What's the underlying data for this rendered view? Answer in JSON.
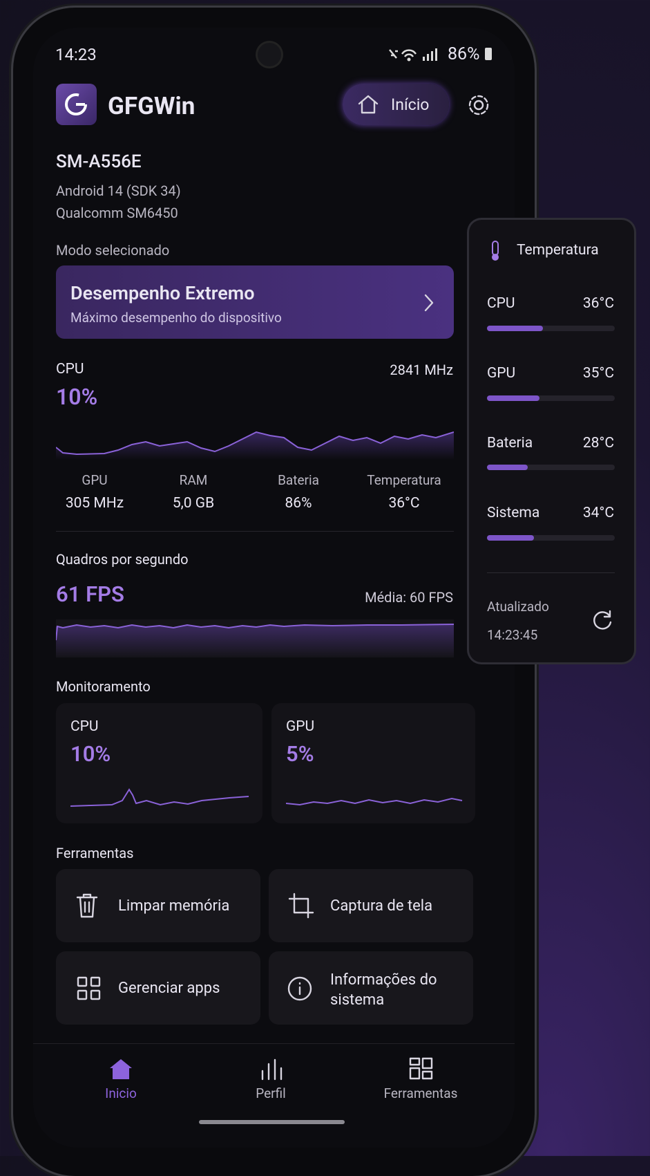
{
  "status_bar": {
    "time": "14:23",
    "battery": "86%"
  },
  "header": {
    "app_name": "GFGWin",
    "home_button": "Início"
  },
  "device": {
    "model": "SM-A556E",
    "android": "Android 14 (SDK 34)",
    "chipset": "Qualcomm SM6450"
  },
  "mode": {
    "label": "Modo selecionado",
    "title": "Desempenho Extremo",
    "subtitle": "Máximo desempenho do dispositivo"
  },
  "cpu": {
    "label": "CPU",
    "frequency": "2841 MHz",
    "usage": "10%"
  },
  "stats": [
    {
      "label": "GPU",
      "value": "305 MHz"
    },
    {
      "label": "RAM",
      "value": "5,0 GB"
    },
    {
      "label": "Bateria",
      "value": "86%"
    },
    {
      "label": "Temperatura",
      "value": "36°C"
    }
  ],
  "fps": {
    "label": "Quadros por segundo",
    "current": "61 FPS",
    "average": "Média: 60 FPS"
  },
  "monitoring": {
    "title": "Monitoramento",
    "cards": [
      {
        "label": "CPU",
        "value": "10%"
      },
      {
        "label": "GPU",
        "value": "5%"
      }
    ]
  },
  "tools": {
    "title": "Ferramentas",
    "items": [
      "Limpar memória",
      "Captura de tela",
      "Gerenciar apps",
      "Informações do sistema"
    ]
  },
  "nav": [
    "Inicio",
    "Perfil",
    "Ferramentas"
  ],
  "temperature_panel": {
    "title": "Temperatura",
    "rows": [
      {
        "label": "CPU",
        "value": "36°C"
      },
      {
        "label": "GPU",
        "value": "35°C"
      },
      {
        "label": "Bateria",
        "value": "28°C"
      },
      {
        "label": "Sistema",
        "value": "34°C"
      }
    ],
    "updated_label": "Atualizado",
    "updated_time": "14:23:45"
  }
}
